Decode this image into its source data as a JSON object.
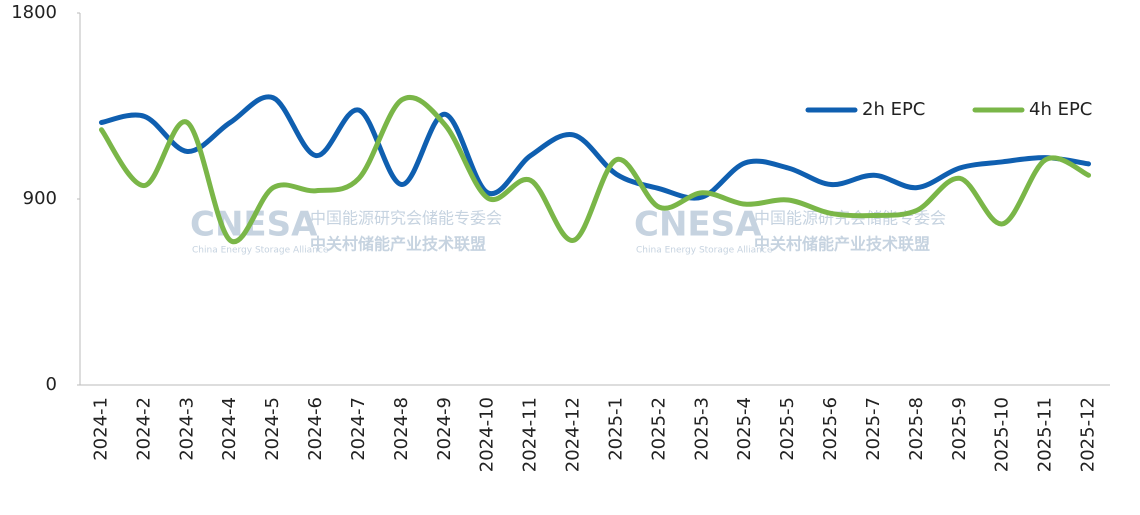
{
  "chart_data": {
    "type": "line",
    "categories": [
      "2024-1",
      "2024-2",
      "2024-3",
      "2024-4",
      "2024-5",
      "2024-6",
      "2024-7",
      "2024-8",
      "2024-9",
      "2024-10",
      "2024-11",
      "2024-12",
      "2025-1",
      "2025-2",
      "2025-3",
      "2025-4",
      "2025-5",
      "2025-6",
      "2025-7",
      "2025-8",
      "2025-9",
      "2025-10",
      "2025-11",
      "2025-12"
    ],
    "series": [
      {
        "name": "2h EPC",
        "color": "#0f5fb0",
        "values": [
          1270,
          1300,
          1130,
          1270,
          1390,
          1110,
          1330,
          970,
          1310,
          930,
          1110,
          1210,
          1020,
          950,
          910,
          1075,
          1050,
          970,
          1015,
          955,
          1050,
          1080,
          1100,
          1070
        ]
      },
      {
        "name": "4h EPC",
        "color": "#7ab648",
        "values": [
          1235,
          965,
          1270,
          700,
          955,
          940,
          1000,
          1380,
          1260,
          905,
          990,
          700,
          1090,
          860,
          930,
          875,
          895,
          830,
          820,
          845,
          1000,
          780,
          1090,
          1015
        ]
      }
    ],
    "ylim": [
      0,
      1800
    ],
    "yticks": [
      0,
      900,
      1800
    ],
    "smooth": true,
    "legend": "top-right",
    "watermark": {
      "logo": "CNESA",
      "line1": "中国能源研究会储能专委会",
      "line2": "中关村储能产业技术联盟",
      "english": "China Energy Storage Alliance"
    }
  }
}
